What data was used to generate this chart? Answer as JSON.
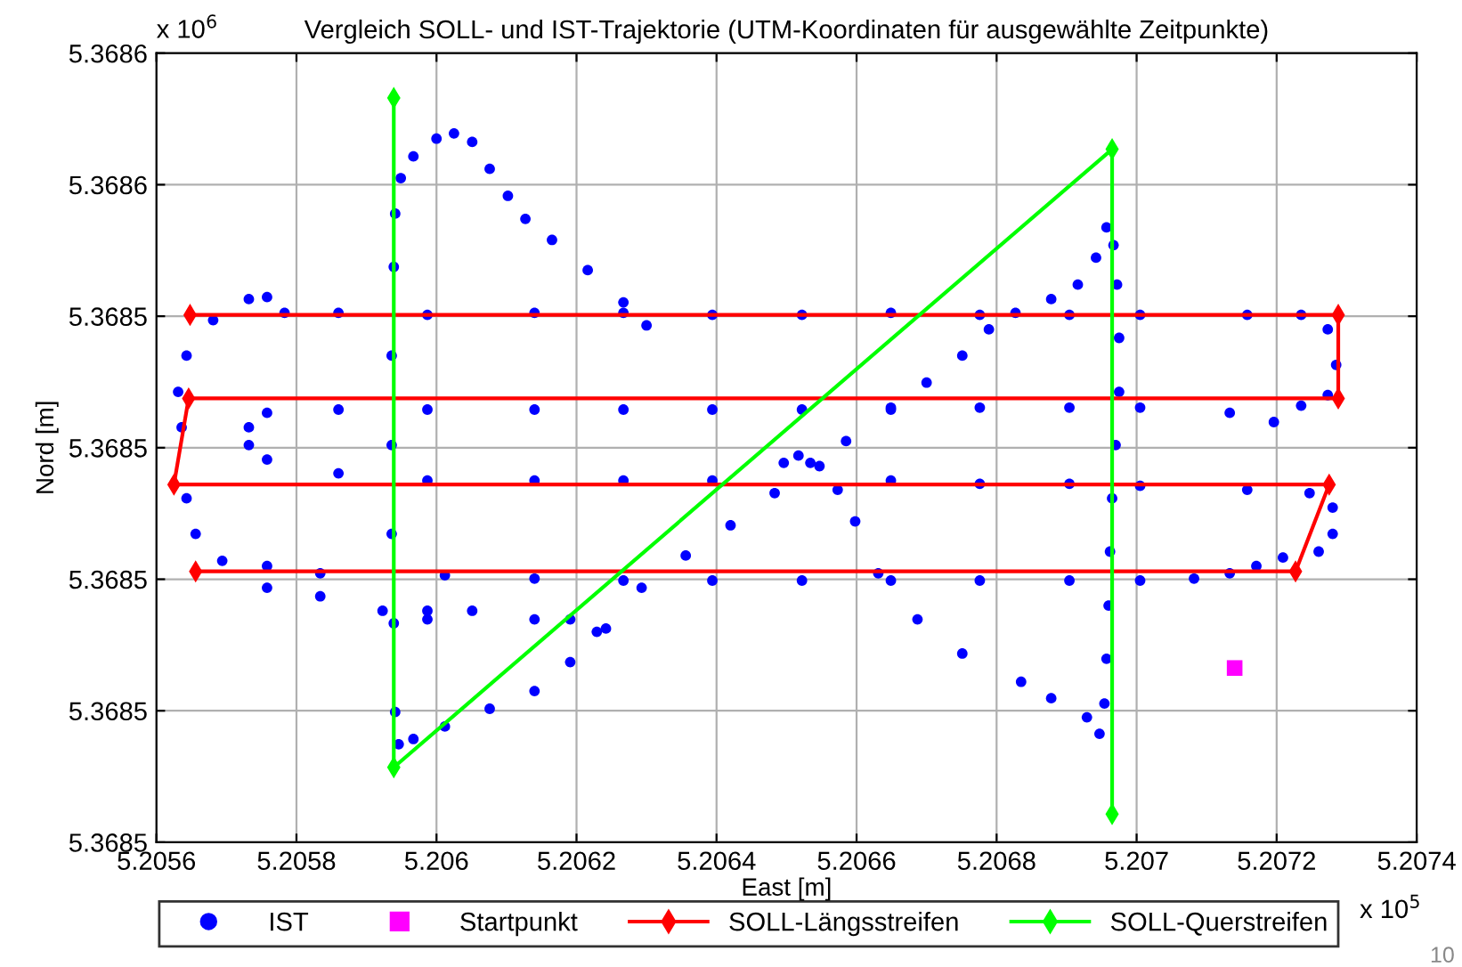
{
  "chart_data": {
    "type": "scatter",
    "title": "Vergleich SOLL- und IST-Trajektorie (UTM-Koordinaten für ausgewählte Zeitpunkte)",
    "xlabel": "East [m]",
    "ylabel": "Nord [m]",
    "xlim": [
      5.2056,
      5.2074
    ],
    "xticks": [
      5.2056,
      5.2058,
      5.206,
      5.2062,
      5.2064,
      5.2066,
      5.2068,
      5.207,
      5.2072,
      5.2074
    ],
    "ylim": [
      5.36846,
      5.36858
    ],
    "yticks": [
      {
        "value": 5.36846,
        "label": "5.3685"
      },
      {
        "value": 5.36848,
        "label": "5.3685"
      },
      {
        "value": 5.3685,
        "label": "5.3685"
      },
      {
        "value": 5.36852,
        "label": "5.3685"
      },
      {
        "value": 5.36854,
        "label": "5.3685"
      },
      {
        "value": 5.36856,
        "label": "5.3686"
      },
      {
        "value": 5.36858,
        "label": "5.3686"
      }
    ],
    "grid": true,
    "legend": "bottom",
    "annotations": [
      "x 10$^{6}$",
      "x 10$^{5}$",
      "10"
    ],
    "series": [
      {
        "name": "IST",
        "marker": "circle",
        "color": "#0000ff",
        "x": [
          5.2063,
          5.206267,
          5.206216,
          5.206165,
          5.206127,
          5.206102,
          5.206076,
          5.206051,
          5.206025,
          5.206,
          5.205967,
          5.205949,
          5.205941,
          5.205939,
          5.205936,
          5.205936,
          5.205936,
          5.205939,
          5.205941,
          5.205946,
          5.205967,
          5.206012,
          5.206076,
          5.20614,
          5.206191,
          5.206242,
          5.206293,
          5.206356,
          5.20642,
          5.206483,
          5.206534,
          5.206585,
          5.206649,
          5.2067,
          5.206751,
          5.206789,
          5.206827,
          5.206878,
          5.206916,
          5.206942,
          5.206957,
          5.206967,
          5.206972,
          5.206975,
          5.206975,
          5.20697,
          5.206965,
          5.206962,
          5.20696,
          5.206957,
          5.206954,
          5.206947,
          5.206929,
          5.206878,
          5.206835,
          5.206751,
          5.206687,
          5.206631,
          5.206598,
          5.206573,
          5.206547,
          5.206517,
          5.206496,
          5.205783,
          5.20586,
          5.205987,
          5.20614,
          5.206267,
          5.206394,
          5.206522,
          5.206649,
          5.206776,
          5.206904,
          5.207005,
          5.207158,
          5.207235,
          5.207273,
          5.207285,
          5.207273,
          5.207235,
          5.207196,
          5.207133,
          5.207005,
          5.206904,
          5.206776,
          5.206649,
          5.206522,
          5.206394,
          5.206267,
          5.20614,
          5.205987,
          5.20586,
          5.205758,
          5.205732,
          5.205732,
          5.205758,
          5.20586,
          5.205987,
          5.20614,
          5.206267,
          5.206394,
          5.206649,
          5.206776,
          5.206904,
          5.207005,
          5.207158,
          5.207247,
          5.20728,
          5.20728,
          5.20726,
          5.207209,
          5.207171,
          5.207133,
          5.207082,
          5.207005,
          5.206904,
          5.206776,
          5.206649,
          5.206522,
          5.206394,
          5.206267,
          5.20614,
          5.206012,
          5.205834,
          5.205758,
          5.205758,
          5.205732,
          5.205681,
          5.205643,
          5.205631,
          5.205636,
          5.205643,
          5.205656,
          5.205694,
          5.205758,
          5.205834,
          5.205923,
          5.205987,
          5.206051,
          5.205987,
          5.20614,
          5.206191,
          5.206229
        ],
        "values": [
          5.3685386,
          5.3685421,
          5.368547,
          5.3685516,
          5.3685548,
          5.3685583,
          5.3685624,
          5.3685665,
          5.3685678,
          5.368567,
          5.3685643,
          5.368561,
          5.3685556,
          5.3685475,
          5.368534,
          5.3685204,
          5.3685069,
          5.3684933,
          5.3684798,
          5.3684749,
          5.3684757,
          5.3684776,
          5.3684803,
          5.368483,
          5.3684874,
          5.3684925,
          5.3684987,
          5.3685036,
          5.3685082,
          5.3685131,
          5.3685177,
          5.368521,
          5.3685258,
          5.3685299,
          5.368534,
          5.368538,
          5.3685405,
          5.3685426,
          5.3685448,
          5.3685489,
          5.3685535,
          5.3685508,
          5.3685448,
          5.3685367,
          5.3685285,
          5.3685204,
          5.3685123,
          5.3685042,
          5.368496,
          5.3684879,
          5.3684811,
          5.3684765,
          5.368479,
          5.3684819,
          5.3684844,
          5.3684887,
          5.3684939,
          5.3685009,
          5.3685088,
          5.3685136,
          5.3685172,
          5.3685188,
          5.3685177,
          5.3685405,
          5.3685405,
          5.3685402,
          5.3685405,
          5.3685405,
          5.3685402,
          5.3685402,
          5.3685405,
          5.3685402,
          5.3685402,
          5.3685402,
          5.3685402,
          5.3685402,
          5.368538,
          5.3685326,
          5.368528,
          5.3685264,
          5.3685239,
          5.3685253,
          5.3685261,
          5.3685261,
          5.3685261,
          5.3685261,
          5.3685258,
          5.3685258,
          5.3685258,
          5.3685258,
          5.3685258,
          5.3685258,
          5.3685253,
          5.3685231,
          5.3685204,
          5.3685182,
          5.3685161,
          5.368515,
          5.368515,
          5.368515,
          5.368515,
          5.368515,
          5.3685145,
          5.3685145,
          5.3685142,
          5.3685136,
          5.3685131,
          5.3685109,
          5.3685069,
          5.3685042,
          5.3685033,
          5.368502,
          5.3685009,
          5.3685001,
          5.3684998,
          5.3684998,
          5.3684998,
          5.3684998,
          5.3684998,
          5.3684998,
          5.3684998,
          5.3685001,
          5.3685006,
          5.3685009,
          5.368502,
          5.3685429,
          5.3685426,
          5.3685394,
          5.368534,
          5.3685285,
          5.3685231,
          5.3685123,
          5.3685069,
          5.3685028,
          5.3684987,
          5.3684974,
          5.3684952,
          5.3684952,
          5.3684952,
          5.3684939,
          5.3684939,
          5.3684939,
          5.368492
        ]
      },
      {
        "name": "Startpunkt",
        "marker": "square",
        "color": "#ff00ff",
        "x": [
          5.20714
        ],
        "values": [
          5.3684865
        ]
      },
      {
        "name": "SOLL-Längsstreifen",
        "type": "line",
        "marker": "diamond",
        "color": "#ff0000",
        "x": [
          5.205656,
          5.207227,
          5.207275,
          5.205625,
          5.205646,
          5.207288,
          5.207288,
          5.205648
        ],
        "values": [
          5.3685012,
          5.3685012,
          5.3685144,
          5.3685144,
          5.3685275,
          5.3685275,
          5.3685402,
          5.3685402
        ]
      },
      {
        "name": "SOLL-Querstreifen",
        "type": "line",
        "marker": "diamond",
        "color": "#00ff00",
        "x": [
          5.205939,
          5.205939,
          5.206965,
          5.206965
        ],
        "values": [
          5.3685732,
          5.3684714,
          5.3685654,
          5.3684643
        ]
      }
    ]
  }
}
